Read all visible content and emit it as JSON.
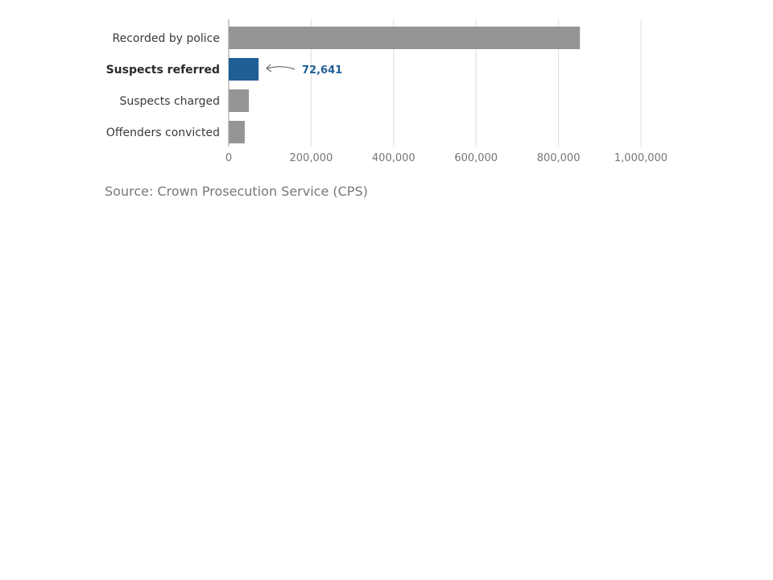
{
  "chart_data": {
    "type": "bar",
    "orientation": "horizontal",
    "categories": [
      "Recorded by police",
      "Suspects referred",
      "Suspects charged",
      "Offenders convicted"
    ],
    "values": [
      852000,
      72641,
      49000,
      39000
    ],
    "highlight_index": 1,
    "highlight_label": "72,641",
    "xlim": [
      0,
      1000000
    ],
    "xticks": [
      0,
      200000,
      400000,
      600000,
      800000,
      1000000
    ],
    "xtick_labels": [
      "0",
      "200,000",
      "400,000",
      "600,000",
      "800,000",
      "1,000,000"
    ],
    "grid": true,
    "colors": {
      "bar": "#959595",
      "highlight": "#1f5e97",
      "grid": "#dddddd",
      "axis": "#999999"
    }
  },
  "footer": {
    "source": "Source: Crown Prosecution Service (CPS)"
  }
}
